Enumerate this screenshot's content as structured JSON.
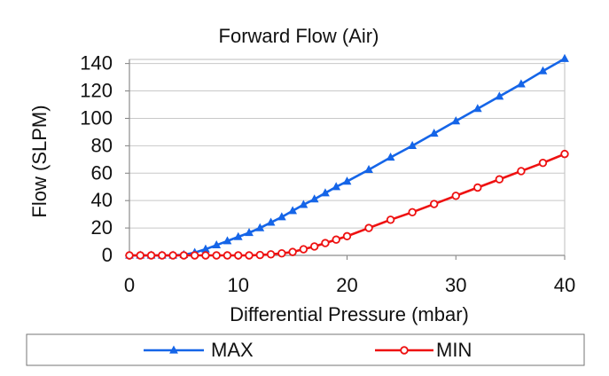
{
  "chart_data": {
    "type": "line",
    "title": "Forward Flow (Air)",
    "xlabel": "Differential Pressure (mbar)",
    "ylabel": "Flow (SLPM)",
    "xlim": [
      0,
      40
    ],
    "ylim": [
      0,
      140
    ],
    "x_ticks": [
      0,
      10,
      20,
      30,
      40
    ],
    "y_ticks": [
      0,
      20,
      40,
      60,
      80,
      100,
      120,
      140
    ],
    "grid": "horizontal",
    "legend_position": "bottom",
    "series": [
      {
        "name": "MAX",
        "color": "#1565e8",
        "marker": "triangle",
        "x": [
          0,
          1,
          2,
          3,
          4,
          5,
          6,
          7,
          8,
          9,
          10,
          11,
          12,
          13,
          14,
          15,
          16,
          17,
          18,
          19,
          20,
          22,
          24,
          26,
          28,
          30,
          32,
          34,
          36,
          38,
          40
        ],
        "values": [
          0,
          0,
          0,
          0,
          0,
          0.5,
          2,
          4.5,
          7.5,
          10.5,
          13.5,
          16.5,
          20,
          24,
          28,
          32.5,
          37,
          41,
          45.5,
          50,
          54,
          62.5,
          71.5,
          80,
          89,
          98,
          107,
          116,
          125,
          134.5,
          143.5
        ]
      },
      {
        "name": "MIN",
        "color": "#ee1111",
        "marker": "circle",
        "x": [
          0,
          1,
          2,
          3,
          4,
          5,
          6,
          7,
          8,
          9,
          10,
          11,
          12,
          13,
          14,
          15,
          16,
          17,
          18,
          19,
          20,
          22,
          24,
          26,
          28,
          30,
          32,
          34,
          36,
          38,
          40
        ],
        "values": [
          0,
          0,
          0,
          0,
          0,
          0,
          0,
          0,
          0,
          0,
          0,
          0,
          0.3,
          0.8,
          1.5,
          2.5,
          4.5,
          6.5,
          9,
          11.5,
          14,
          20,
          26,
          31.5,
          37.5,
          43.5,
          49.5,
          55.5,
          61.5,
          67.5,
          74
        ]
      }
    ]
  }
}
